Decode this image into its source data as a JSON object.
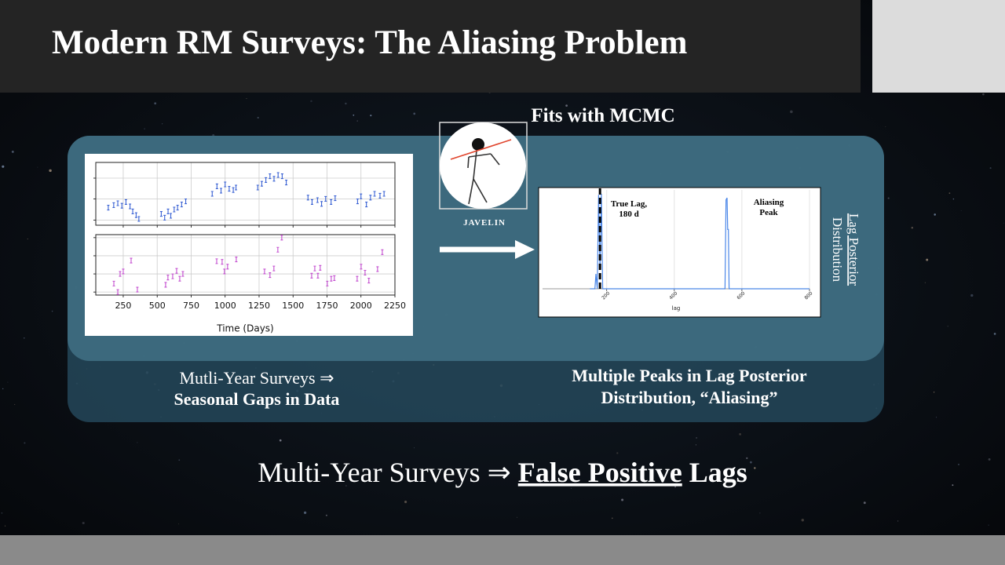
{
  "header": {
    "title": "Modern RM Surveys: The Aliasing Problem"
  },
  "fits_label": "Fits with MCMC",
  "javelin_label": "JAVELIN",
  "left_caption": {
    "line1": "Mutli-Year Surveys ⇒",
    "line2": "Seasonal Gaps in Data"
  },
  "right_caption": {
    "line1": "Multiple Peaks in Lag Posterior",
    "line2": "Distribution, “Aliasing”"
  },
  "bottom": {
    "prefix": "Multi-Year Surveys ⇒",
    "emphasis": "False Positive",
    "suffix": "Lags"
  },
  "chart_data": [
    {
      "type": "scatter",
      "x_label": "Time (Days)",
      "xlim": [
        48,
        2250
      ],
      "xticks": [
        250,
        500,
        750,
        1000,
        1250,
        1500,
        1750,
        2000,
        2250
      ],
      "grid": true,
      "series": [
        {
          "color": "#3a62d4",
          "ylim": [
            0,
            1
          ],
          "yticks": [
            0.08,
            0.42,
            0.75
          ],
          "x": [
            140,
            180,
            210,
            240,
            270,
            300,
            320,
            345,
            365,
            530,
            555,
            580,
            600,
            625,
            650,
            680,
            710,
            905,
            940,
            970,
            1000,
            1030,
            1060,
            1080,
            1240,
            1270,
            1300,
            1330,
            1360,
            1390,
            1420,
            1450,
            1610,
            1640,
            1680,
            1710,
            1740,
            1780,
            1810,
            1975,
            2000,
            2040,
            2070,
            2100,
            2140,
            2170
          ],
          "values": [
            0.28,
            0.32,
            0.35,
            0.31,
            0.37,
            0.3,
            0.22,
            0.16,
            0.1,
            0.18,
            0.12,
            0.22,
            0.15,
            0.25,
            0.28,
            0.33,
            0.38,
            0.5,
            0.62,
            0.55,
            0.65,
            0.58,
            0.56,
            0.6,
            0.6,
            0.66,
            0.72,
            0.78,
            0.74,
            0.8,
            0.78,
            0.68,
            0.44,
            0.37,
            0.4,
            0.34,
            0.42,
            0.37,
            0.43,
            0.38,
            0.46,
            0.33,
            0.44,
            0.5,
            0.47,
            0.5
          ]
        },
        {
          "color": "#c44fd0",
          "ylim": [
            0,
            1
          ],
          "yticks": [
            0.05,
            0.35,
            0.65,
            0.95
          ],
          "x": [
            181,
            210,
            227,
            250,
            308,
            354,
            562,
            579,
            614,
            643,
            666,
            689,
            938,
            978,
            995,
            1018,
            1082,
            1290,
            1330,
            1359,
            1388,
            1417,
            1637,
            1660,
            1683,
            1700,
            1752,
            1781,
            1804,
            1972,
            2001,
            2030,
            2058,
            2122,
            2157
          ],
          "values": [
            0.19,
            0.05,
            0.35,
            0.39,
            0.57,
            0.09,
            0.17,
            0.29,
            0.31,
            0.4,
            0.27,
            0.35,
            0.56,
            0.55,
            0.39,
            0.47,
            0.59,
            0.39,
            0.33,
            0.44,
            0.75,
            0.95,
            0.32,
            0.44,
            0.32,
            0.45,
            0.19,
            0.27,
            0.28,
            0.27,
            0.47,
            0.37,
            0.24,
            0.43,
            0.71
          ]
        }
      ]
    },
    {
      "type": "line",
      "x_label": "lag",
      "xlim": [
        10,
        800
      ],
      "xticks": [
        200,
        400,
        600,
        800
      ],
      "ylim": [
        0,
        1
      ],
      "grid": true,
      "series": [
        {
          "color": "#4a86e8",
          "x": [
            150,
            165,
            168,
            172,
            176,
            180,
            184,
            188,
            540,
            550,
            553,
            556,
            558,
            560,
            562,
            800
          ],
          "values": [
            0,
            0,
            0.15,
            0,
            0.95,
            0.2,
            0.96,
            0,
            0,
            0,
            0.9,
            0.92,
            0.6,
            0.6,
            0,
            0
          ]
        }
      ],
      "true_lag": {
        "x": 180,
        "lines": [
          "True Lag,",
          "180 d"
        ]
      },
      "peak_label": [
        "Aliasing",
        "Peak"
      ],
      "y_label": [
        "Lag Posterior",
        "Distribution"
      ]
    }
  ]
}
